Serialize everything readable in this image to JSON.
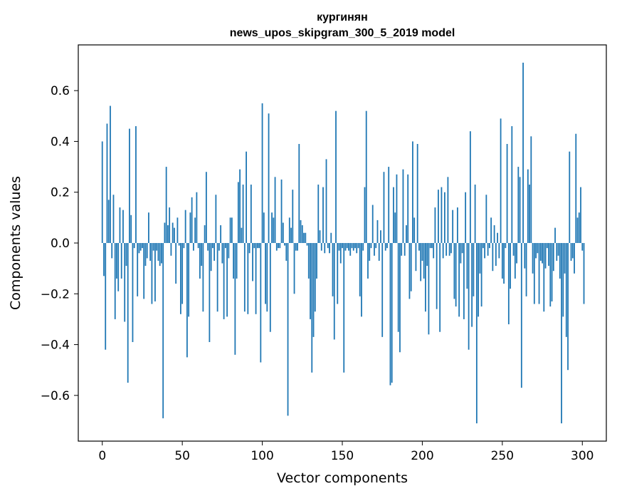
{
  "chart_data": {
    "type": "bar",
    "title": "кургинян",
    "subtitle": "news_upos_skipgram_300_5_2019 model",
    "xlabel": "Vector components",
    "ylabel": "Components values",
    "xlim": [
      -15,
      315
    ],
    "ylim": [
      -0.78,
      0.78
    ],
    "xticks": [
      0,
      50,
      100,
      150,
      200,
      250,
      300
    ],
    "xtick_labels": [
      "0",
      "50",
      "100",
      "150",
      "200",
      "250",
      "300"
    ],
    "yticks": [
      -0.6,
      -0.4,
      -0.2,
      0.0,
      0.2,
      0.4,
      0.6
    ],
    "ytick_labels": [
      "−0.6",
      "−0.4",
      "−0.2",
      "0.0",
      "0.2",
      "0.4",
      "0.6"
    ],
    "bar_color": "#1f77b4",
    "x_start": 0,
    "values": [
      0.4,
      -0.13,
      -0.42,
      0.47,
      0.17,
      0.54,
      -0.06,
      0.19,
      -0.3,
      -0.14,
      -0.19,
      0.14,
      -0.14,
      0.13,
      -0.31,
      -0.09,
      -0.55,
      0.45,
      0.11,
      -0.39,
      -0.02,
      0.46,
      -0.21,
      -0.04,
      -0.03,
      -0.02,
      -0.22,
      -0.09,
      -0.06,
      0.12,
      -0.07,
      -0.24,
      -0.03,
      -0.23,
      -0.03,
      -0.07,
      -0.09,
      -0.08,
      -0.69,
      0.08,
      0.3,
      0.07,
      0.14,
      -0.05,
      0.08,
      0.06,
      -0.16,
      0.1,
      -0.01,
      -0.28,
      -0.24,
      -0.02,
      0.13,
      -0.45,
      -0.29,
      0.12,
      0.18,
      -0.03,
      0.1,
      0.2,
      -0.02,
      -0.14,
      -0.09,
      -0.27,
      0.07,
      0.28,
      -0.03,
      -0.39,
      -0.11,
      -0.02,
      -0.07,
      0.19,
      -0.27,
      -0.03,
      0.07,
      -0.08,
      -0.3,
      -0.02,
      -0.29,
      -0.06,
      0.1,
      0.1,
      -0.14,
      -0.44,
      -0.14,
      0.24,
      0.29,
      0.06,
      0.23,
      -0.27,
      0.36,
      -0.28,
      -0.04,
      0.23,
      -0.15,
      -0.02,
      -0.28,
      -0.02,
      -0.02,
      -0.47,
      0.55,
      0.12,
      -0.24,
      -0.27,
      0.51,
      -0.35,
      0.12,
      0.1,
      0.26,
      -0.03,
      -0.02,
      -0.02,
      0.25,
      0.08,
      -0.01,
      -0.07,
      -0.68,
      0.1,
      0.06,
      0.21,
      -0.2,
      -0.03,
      -0.03,
      0.39,
      0.09,
      0.07,
      0.04,
      0.04,
      -0.01,
      -0.14,
      -0.3,
      -0.51,
      -0.37,
      -0.27,
      -0.14,
      0.23,
      0.05,
      -0.03,
      0.22,
      -0.04,
      0.33,
      -0.02,
      -0.04,
      0.04,
      -0.21,
      -0.38,
      0.52,
      -0.24,
      -0.03,
      -0.08,
      -0.02,
      -0.51,
      -0.03,
      -0.02,
      -0.03,
      -0.05,
      -0.02,
      -0.03,
      -0.02,
      -0.04,
      -0.02,
      -0.21,
      -0.29,
      -0.03,
      0.22,
      0.52,
      -0.14,
      -0.07,
      -0.02,
      0.15,
      -0.05,
      -0.02,
      0.09,
      -0.07,
      0.05,
      -0.37,
      0.28,
      -0.03,
      -0.02,
      0.3,
      -0.56,
      -0.55,
      0.22,
      0.12,
      0.27,
      -0.35,
      -0.43,
      -0.05,
      0.29,
      -0.05,
      0.07,
      0.27,
      -0.22,
      -0.19,
      0.4,
      0.1,
      -0.11,
      0.39,
      -0.03,
      -0.15,
      -0.07,
      -0.14,
      -0.27,
      -0.09,
      -0.36,
      -0.02,
      -0.02,
      -0.06,
      0.14,
      -0.26,
      0.21,
      -0.35,
      0.22,
      -0.06,
      0.2,
      -0.05,
      0.26,
      -0.05,
      -0.04,
      0.13,
      -0.22,
      -0.25,
      0.14,
      -0.29,
      -0.08,
      -0.04,
      -0.3,
      0.2,
      -0.18,
      -0.42,
      0.44,
      -0.33,
      -0.21,
      0.23,
      -0.71,
      -0.29,
      -0.12,
      -0.25,
      -0.02,
      -0.06,
      0.19,
      -0.05,
      -0.02,
      0.1,
      -0.11,
      0.07,
      -0.09,
      0.04,
      -0.06,
      0.49,
      -0.14,
      -0.16,
      -0.02,
      0.39,
      -0.32,
      -0.18,
      0.46,
      -0.05,
      -0.14,
      -0.08,
      0.3,
      0.26,
      -0.57,
      0.71,
      -0.1,
      -0.21,
      0.29,
      0.23,
      0.42,
      -0.12,
      -0.24,
      -0.06,
      -0.04,
      -0.24,
      -0.07,
      -0.08,
      -0.27,
      -0.1,
      -0.02,
      -0.09,
      -0.25,
      -0.23,
      -0.11,
      0.06,
      -0.07,
      -0.05,
      -0.14,
      -0.71,
      -0.29,
      -0.12,
      -0.37,
      -0.5,
      0.36,
      -0.07,
      -0.06,
      -0.12,
      0.43,
      0.1,
      0.12,
      0.22,
      -0.03,
      -0.24
    ]
  }
}
